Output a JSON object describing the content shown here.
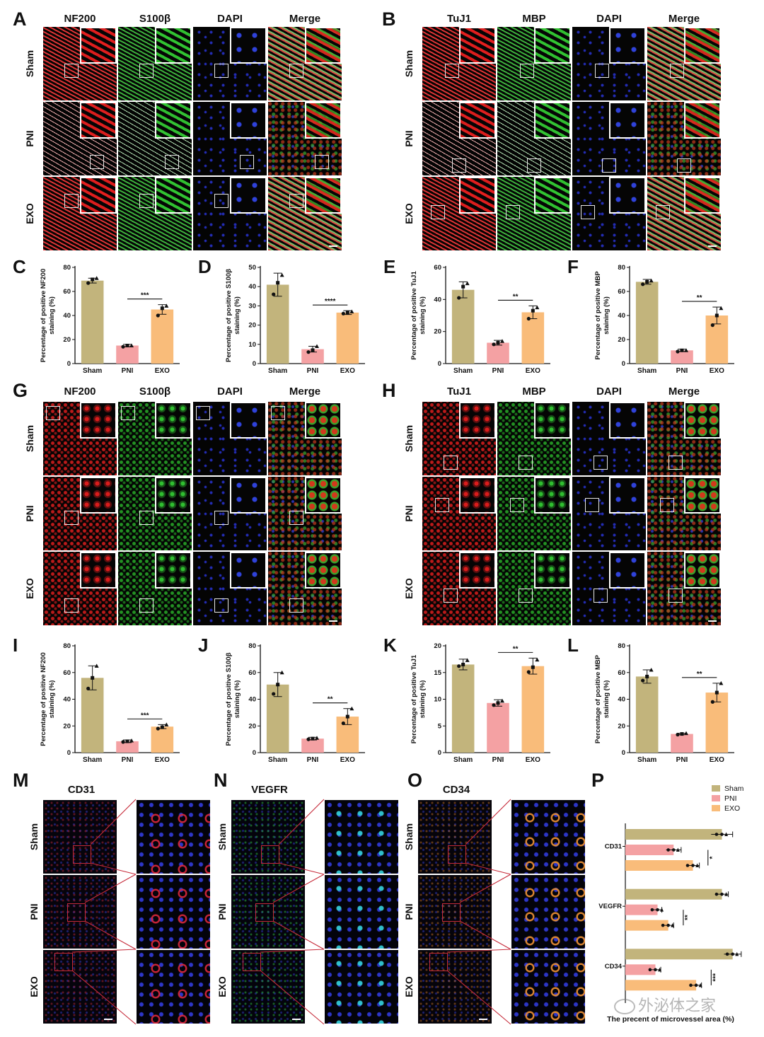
{
  "panels": {
    "A": {
      "label": "A",
      "channels": [
        "NF200",
        "S100β",
        "DAPI",
        "Merge"
      ],
      "rows": [
        "Sham",
        "PNI",
        "EXO"
      ]
    },
    "B": {
      "label": "B",
      "channels": [
        "TuJ1",
        "MBP",
        "DAPI",
        "Merge"
      ],
      "rows": [
        "Sham",
        "PNI",
        "EXO"
      ]
    },
    "G": {
      "label": "G",
      "channels": [
        "NF200",
        "S100β",
        "DAPI",
        "Merge"
      ],
      "rows": [
        "Sham",
        "PNI",
        "EXO"
      ]
    },
    "H": {
      "label": "H",
      "channels": [
        "TuJ1",
        "MBP",
        "DAPI",
        "Merge"
      ],
      "rows": [
        "Sham",
        "PNI",
        "EXO"
      ]
    },
    "M": {
      "label": "M",
      "title": "CD31",
      "rows": [
        "Sham",
        "PNI",
        "EXO"
      ]
    },
    "N": {
      "label": "N",
      "title": "VEGFR",
      "rows": [
        "Sham",
        "PNI",
        "EXO"
      ]
    },
    "O": {
      "label": "O",
      "title": "CD34",
      "rows": [
        "Sham",
        "PNI",
        "EXO"
      ]
    },
    "P": {
      "label": "P"
    }
  },
  "colors": {
    "sham": "#c2b47c",
    "pni": "#f4a1a3",
    "exo": "#f9bc7a",
    "red": "#d41e22",
    "green": "#28a828",
    "blue": "#2230c8"
  },
  "chart_data": [
    {
      "id": "C",
      "type": "bar",
      "categories": [
        "Sham",
        "PNI",
        "EXO"
      ],
      "values": [
        69,
        15,
        45
      ],
      "errors": [
        2,
        1,
        4
      ],
      "points": [
        [
          67,
          70,
          71
        ],
        [
          14,
          15,
          15
        ],
        [
          40,
          46,
          48
        ]
      ],
      "ylabel": "Percentage of positive NF200 staining (%)",
      "ylim": [
        0,
        80
      ],
      "yticks": [
        0,
        20,
        40,
        60,
        80
      ],
      "sig": "***"
    },
    {
      "id": "D",
      "type": "bar",
      "categories": [
        "Sham",
        "PNI",
        "EXO"
      ],
      "values": [
        41,
        7.5,
        26.5
      ],
      "errors": [
        6,
        1.5,
        1
      ],
      "points": [
        [
          36,
          42,
          46
        ],
        [
          6,
          7,
          9
        ],
        [
          26,
          26.5,
          27
        ]
      ],
      "ylabel": "Percentage of positive S100β staining (%)",
      "ylim": [
        0,
        50
      ],
      "yticks": [
        0,
        10,
        20,
        30,
        40,
        50
      ],
      "sig": "****"
    },
    {
      "id": "E",
      "type": "bar",
      "categories": [
        "Sham",
        "PNI",
        "EXO"
      ],
      "values": [
        46,
        13,
        32
      ],
      "errors": [
        5,
        1.5,
        4
      ],
      "points": [
        [
          41,
          48,
          50
        ],
        [
          12,
          13,
          14
        ],
        [
          28,
          33,
          35
        ]
      ],
      "ylabel": "Percentage of positive TuJ1 staining (%)",
      "ylim": [
        0,
        60
      ],
      "yticks": [
        0,
        20,
        40,
        60
      ],
      "sig": "**"
    },
    {
      "id": "F",
      "type": "bar",
      "categories": [
        "Sham",
        "PNI",
        "EXO"
      ],
      "values": [
        68,
        11,
        40
      ],
      "errors": [
        2,
        1,
        7
      ],
      "points": [
        [
          66,
          68,
          69
        ],
        [
          10,
          11,
          11
        ],
        [
          32,
          40,
          46
        ]
      ],
      "ylabel": "Percentage of positive MBP staining (%)",
      "ylim": [
        0,
        80
      ],
      "yticks": [
        0,
        20,
        40,
        60,
        80
      ],
      "sig": "**"
    },
    {
      "id": "I",
      "type": "bar",
      "categories": [
        "Sham",
        "PNI",
        "EXO"
      ],
      "values": [
        56,
        8.5,
        19.5
      ],
      "errors": [
        9,
        1,
        1.5
      ],
      "points": [
        [
          48,
          56,
          65
        ],
        [
          8,
          8.5,
          9
        ],
        [
          18,
          19,
          21
        ]
      ],
      "ylabel": "Percentage of positive NF200 staining (%)",
      "ylim": [
        0,
        80
      ],
      "yticks": [
        0,
        20,
        40,
        60,
        80
      ],
      "sig": "***"
    },
    {
      "id": "J",
      "type": "bar",
      "categories": [
        "Sham",
        "PNI",
        "EXO"
      ],
      "values": [
        51,
        10.5,
        27
      ],
      "errors": [
        9,
        1,
        6
      ],
      "points": [
        [
          44,
          51,
          60
        ],
        [
          10,
          10.5,
          11
        ],
        [
          22,
          27,
          33
        ]
      ],
      "ylabel": "Percentage of positive S100β staining (%)",
      "ylim": [
        0,
        80
      ],
      "yticks": [
        0,
        20,
        40,
        60,
        80
      ],
      "sig": "**"
    },
    {
      "id": "K",
      "type": "bar",
      "categories": [
        "Sham",
        "PNI",
        "EXO"
      ],
      "values": [
        16.5,
        9.3,
        16.2
      ],
      "errors": [
        1,
        0.6,
        1.5
      ],
      "points": [
        [
          16.2,
          16.5,
          17.3
        ],
        [
          8.9,
          9.3,
          9.7
        ],
        [
          15.1,
          16,
          17.4
        ]
      ],
      "ylabel": "Percentage of positive TuJ1 staining (%)",
      "ylim": [
        0,
        20
      ],
      "yticks": [
        0,
        5,
        10,
        15,
        20
      ],
      "sig": "**"
    },
    {
      "id": "L",
      "type": "bar",
      "categories": [
        "Sham",
        "PNI",
        "EXO"
      ],
      "values": [
        57,
        14,
        45
      ],
      "errors": [
        5,
        0.5,
        7
      ],
      "points": [
        [
          54,
          57,
          62
        ],
        [
          13.5,
          14,
          14.5
        ],
        [
          38,
          45,
          52
        ]
      ],
      "ylabel": "Percentage of positive MBP staining (%)",
      "ylim": [
        0,
        80
      ],
      "yticks": [
        0,
        20,
        40,
        60,
        80
      ],
      "sig": "**"
    },
    {
      "id": "P",
      "type": "bar",
      "orientation": "horizontal",
      "categories": [
        "CD31",
        "VEGFR",
        "CD34"
      ],
      "series": [
        {
          "name": "Sham",
          "values": [
            0.9,
            0.9,
            1.0
          ],
          "errors": [
            0.1,
            0.06,
            0.08
          ]
        },
        {
          "name": "PNI",
          "values": [
            0.45,
            0.3,
            0.28
          ],
          "errors": [
            0.07,
            0.04,
            0.05
          ]
        },
        {
          "name": "EXO",
          "values": [
            0.63,
            0.4,
            0.66
          ],
          "errors": [
            0.06,
            0.05,
            0.05
          ]
        }
      ],
      "sig": [
        "*",
        "**",
        "***"
      ],
      "xlabel": "The precent of microvessel area (%)"
    }
  ],
  "watermark": "外泌体之家"
}
